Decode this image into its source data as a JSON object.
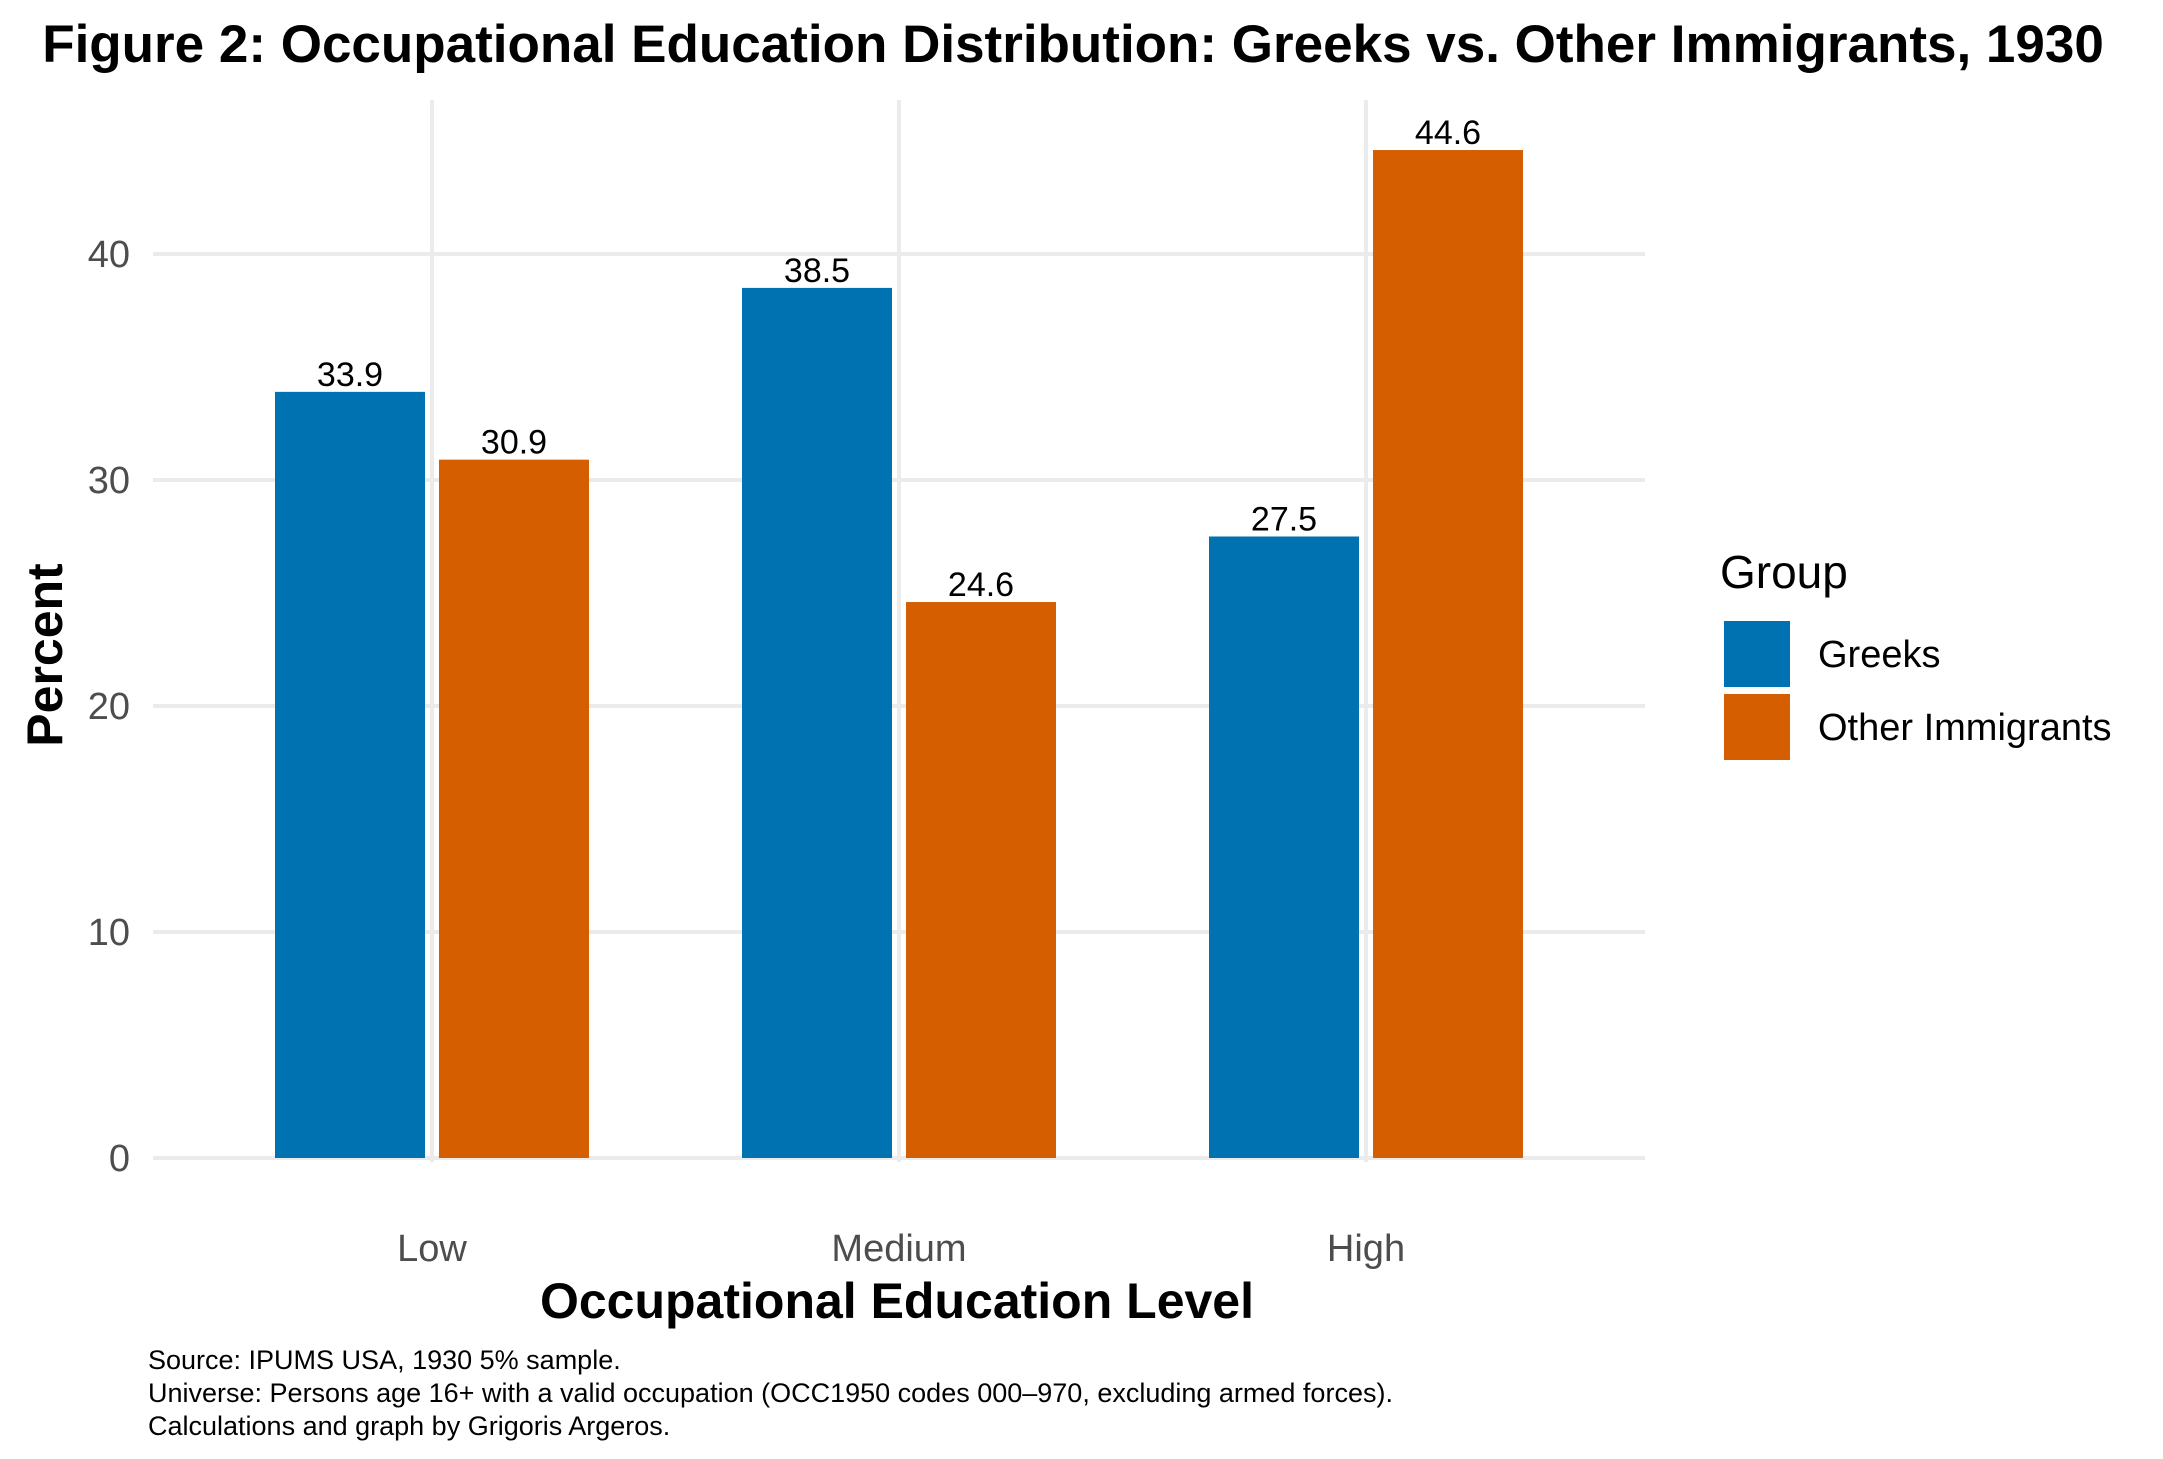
{
  "chart_data": {
    "type": "bar",
    "title": "Figure 2: Occupational Education Distribution: Greeks vs. Other Immigrants, 1930",
    "xlabel": "Occupational Education Level",
    "ylabel": "Percent",
    "categories": [
      "Low",
      "Medium",
      "High"
    ],
    "series": [
      {
        "name": "Greeks",
        "color": "#0072b2",
        "values": [
          33.9,
          38.5,
          27.5
        ]
      },
      {
        "name": "Other Immigrants",
        "color": "#d55e00",
        "values": [
          30.9,
          24.6,
          44.6
        ]
      }
    ],
    "ylim": [
      0,
      46.8
    ],
    "yticks": [
      0,
      10,
      20,
      30,
      40
    ],
    "grid": true,
    "legend": {
      "title": "Group",
      "position": "right"
    },
    "caption": [
      "Source: IPUMS USA, 1930 5% sample.",
      "Universe: Persons age 16+ with a valid occupation (OCC1950 codes 000–970, excluding armed forces).",
      "Calculations and graph by Grigoris Argeros."
    ]
  }
}
